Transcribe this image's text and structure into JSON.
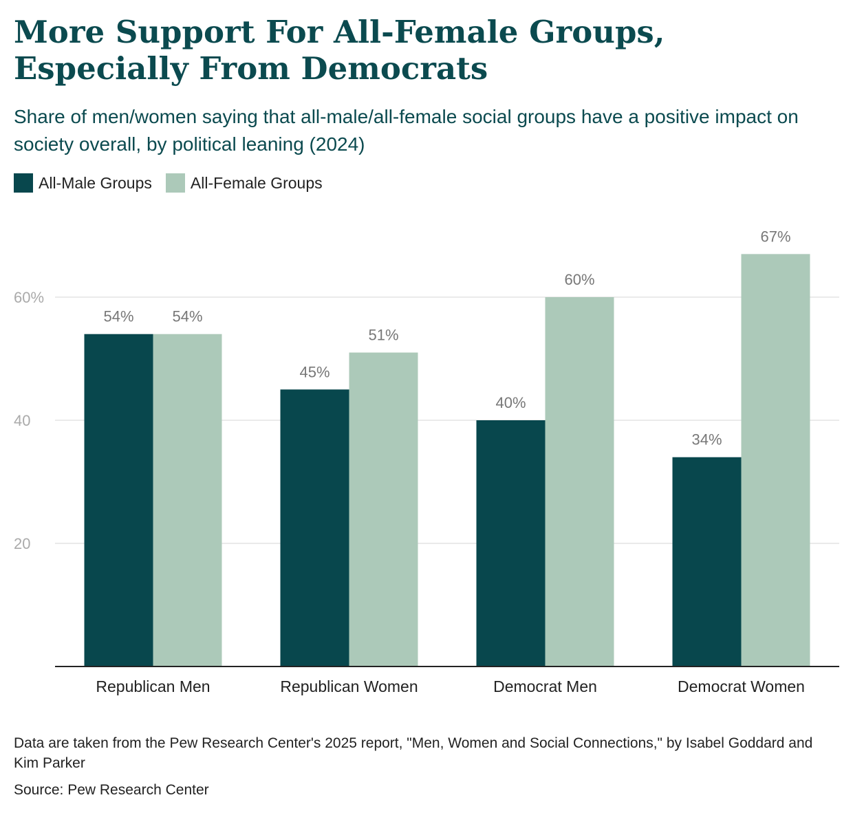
{
  "header": {
    "title": "More Support For All-Female Groups, Especially From Democrats",
    "subtitle": "Share of men/women saying that all-male/all-female social groups have a positive impact on society overall, by political leaning (2024)"
  },
  "legend": [
    {
      "label": "All-Male Groups",
      "color": "#08474d"
    },
    {
      "label": "All-Female Groups",
      "color": "#acc9b9"
    }
  ],
  "footer": {
    "note": "Data are taken from the Pew Research Center's 2025 report, \"Men, Women and Social Connections,\" by Isabel Goddard and Kim Parker",
    "source": "Source: Pew Research Center"
  },
  "chart_data": {
    "type": "bar",
    "categories": [
      "Republican Men",
      "Republican Women",
      "Democrat Men",
      "Democrat Women"
    ],
    "series": [
      {
        "name": "All-Male Groups",
        "values": [
          54,
          45,
          40,
          34
        ],
        "color": "#08474d"
      },
      {
        "name": "All-Female Groups",
        "values": [
          54,
          51,
          60,
          67
        ],
        "color": "#acc9b9"
      }
    ],
    "value_labels": [
      [
        "54%",
        "45%",
        "40%",
        "34%"
      ],
      [
        "54%",
        "51%",
        "60%",
        "67%"
      ]
    ],
    "yticks": [
      {
        "value": 20,
        "label": "20"
      },
      {
        "value": 40,
        "label": "40"
      },
      {
        "value": 60,
        "label": "60%"
      }
    ],
    "ylim": [
      0,
      67
    ],
    "grid": true
  }
}
